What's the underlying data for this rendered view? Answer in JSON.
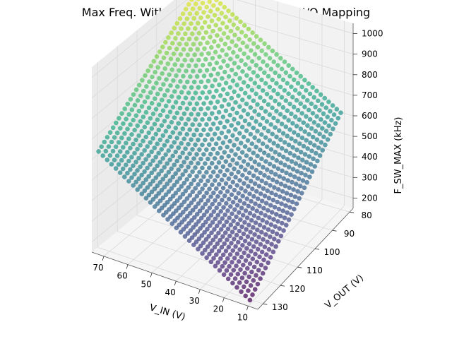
{
  "chart_data": {
    "type": "scatter",
    "projection": "3d",
    "title": "Max Freq. Within Power Budget Across I/O Mapping",
    "xlabel": "V_IN (V)",
    "ylabel": "V_OUT (V)",
    "zlabel": "F_SW_MAX (kHz)",
    "x_ticks": [
      "10",
      "20",
      "30",
      "40",
      "50",
      "60",
      "70"
    ],
    "y_ticks": [
      "80",
      "90",
      "100",
      "110",
      "120",
      "130"
    ],
    "z_ticks": [
      "200",
      "300",
      "400",
      "500",
      "600",
      "700",
      "800",
      "900",
      "1000"
    ],
    "x_range": [
      6,
      75
    ],
    "y_range": [
      78,
      133
    ],
    "z_range": [
      150,
      1050
    ],
    "grid": true,
    "colormap": "viridis",
    "surface_samples": [
      {
        "v_in": 73,
        "v_out": 80,
        "f_sw_max": 1040
      },
      {
        "v_in": 73,
        "v_out": 132,
        "f_sw_max": 640
      },
      {
        "v_in": 10,
        "v_out": 80,
        "f_sw_max": 620
      },
      {
        "v_in": 10,
        "v_out": 132,
        "f_sw_max": 170
      },
      {
        "v_in": 40,
        "v_out": 105,
        "f_sw_max": 430
      }
    ]
  },
  "colors": {
    "pane_left": "#ebebeb",
    "pane_back": "#f2f2f2",
    "pane_floor": "#f5f5f5",
    "grid": "#d9d9d9"
  }
}
